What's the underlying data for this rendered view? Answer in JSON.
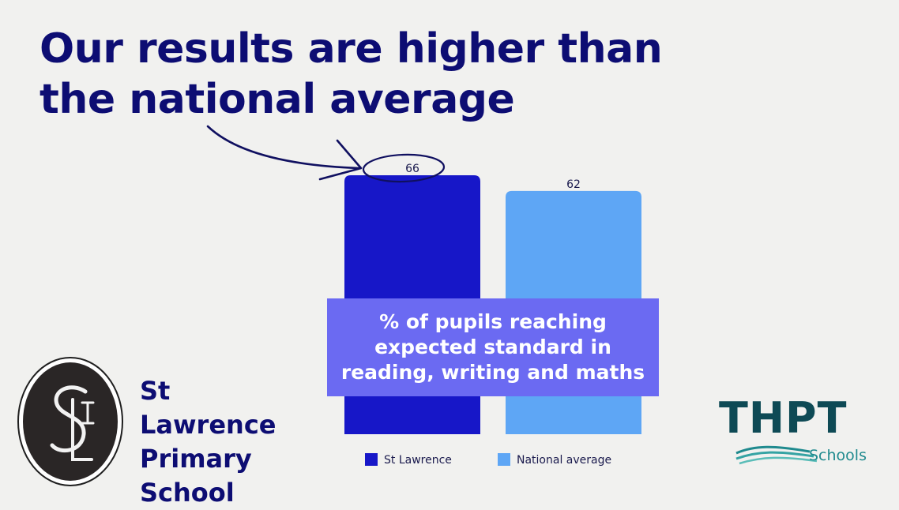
{
  "slide": {
    "headline": "Our results are higher than the national average",
    "caption": "% of pupils reaching expected standard in reading, writing and maths"
  },
  "school": {
    "name_lines": [
      "St Lawrence",
      "Primary",
      "School"
    ],
    "seal_text": "SLI"
  },
  "partner": {
    "logo_word": "THPT",
    "logo_sub": "Schools"
  },
  "chart_data": {
    "type": "bar",
    "categories": [
      "St Lawrence",
      "National average"
    ],
    "values": [
      66,
      62
    ],
    "series": [
      {
        "name": "St Lawrence",
        "value": 66,
        "color": "#1717c8"
      },
      {
        "name": "National average",
        "value": 62,
        "color": "#5ea6f5"
      }
    ],
    "data_labels": [
      "66",
      "62"
    ],
    "legend": "bottom",
    "grid": false,
    "annotation": "hand-drawn arrow and circle around 66"
  }
}
